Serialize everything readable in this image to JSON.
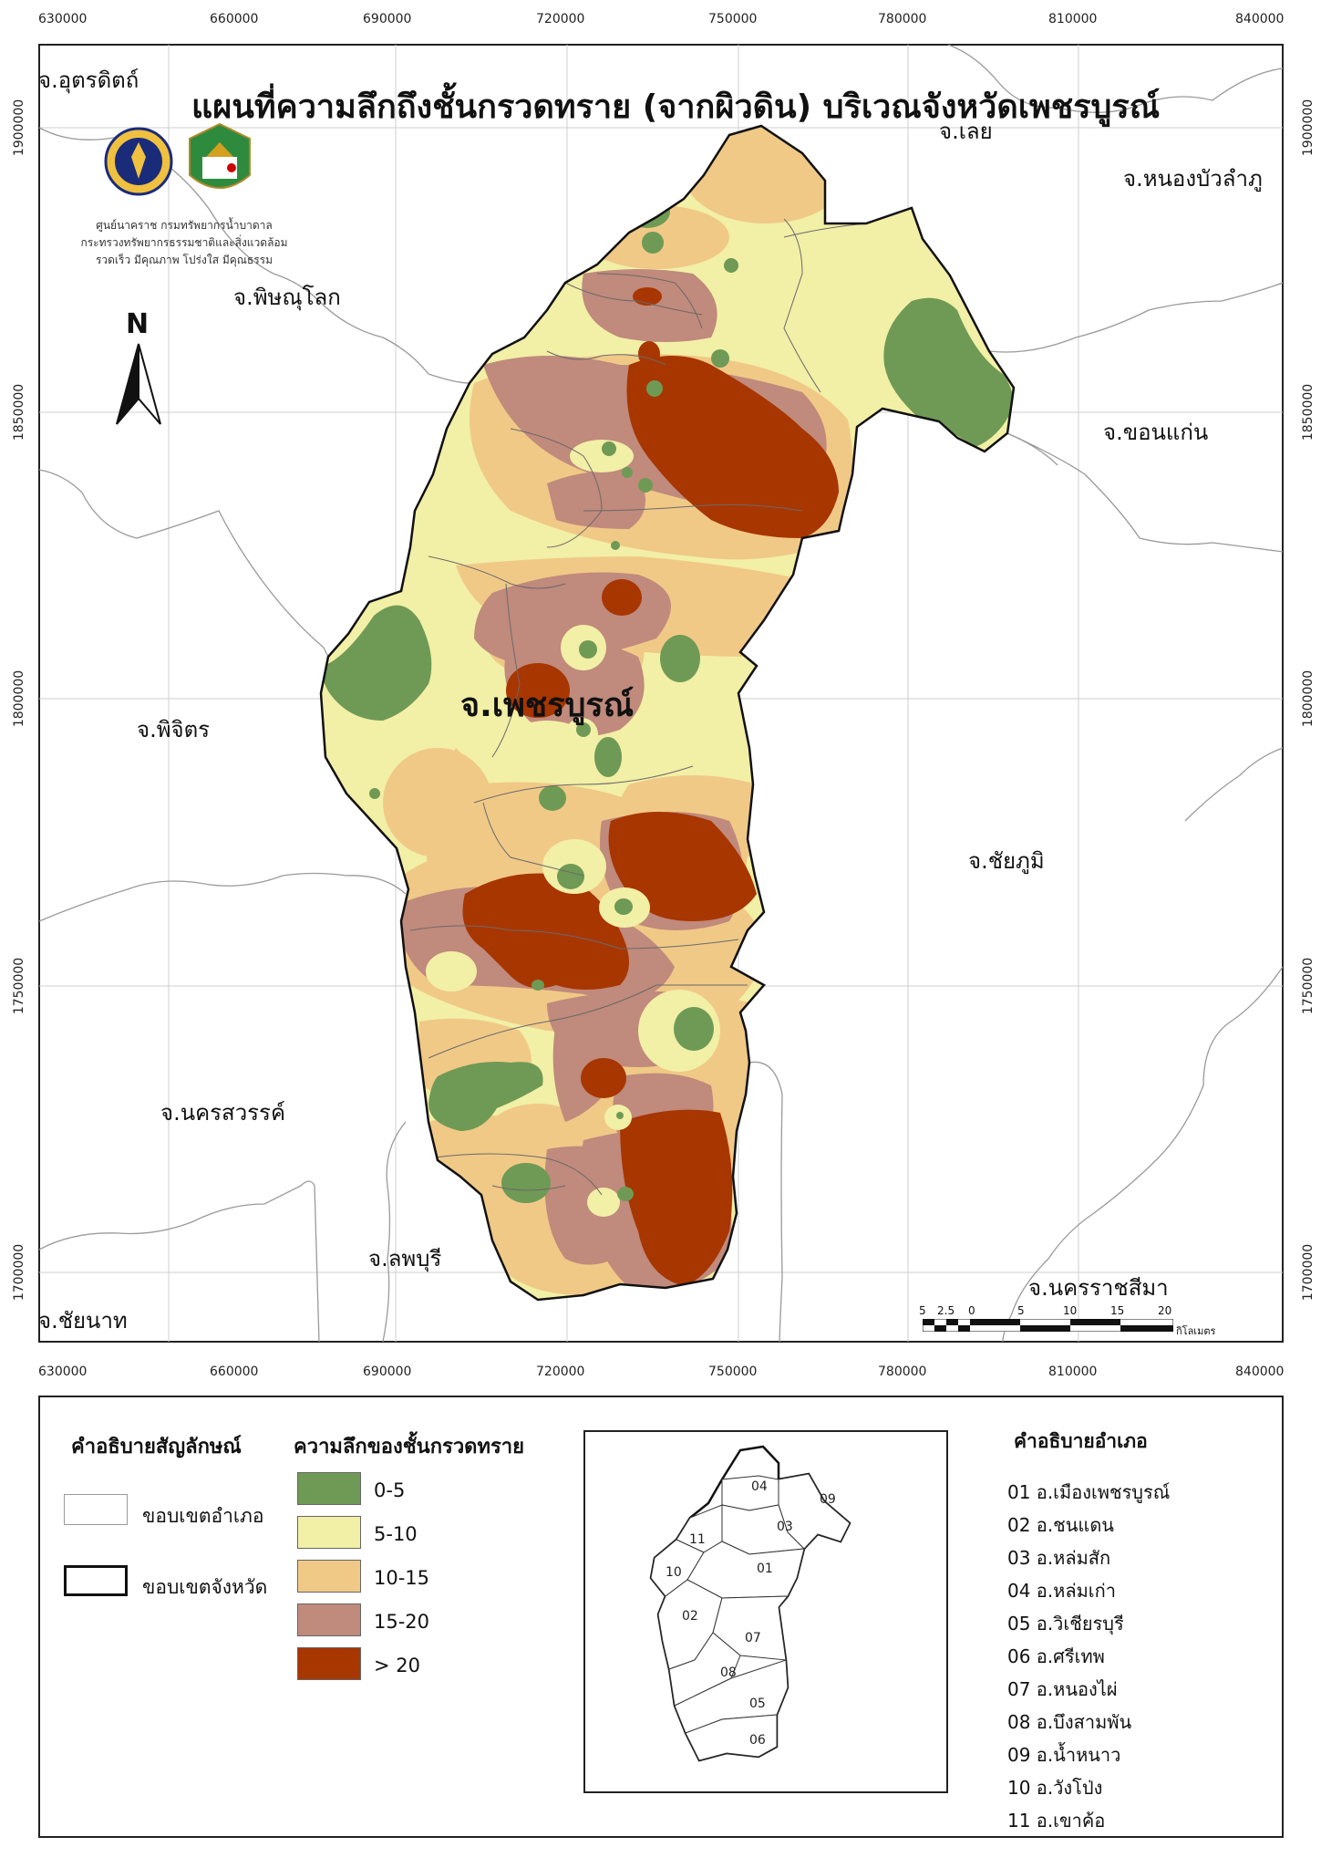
{
  "title": "แผนที่ความลึกถึงชั้นกรวดทราย (จากผิวดิน) บริเวณจังหวัดเพชรบูรณ์",
  "agency": {
    "line1": "ศูนย์นาคราช กรมทรัพยากรน้ำบาดาล",
    "line2": "กระทรวงทรัพยากรธรรมชาติและสิ่งแวดล้อม",
    "line3": "รวดเร็ว มีคุณภาพ โปร่งใส มีคุณธรรม"
  },
  "north_arrow": "N",
  "center_label": "จ.เพชรบูรณ์",
  "provinces": {
    "uttaradit": "จ.อุตรดิตถ์",
    "loei": "จ.เลย",
    "nongbualamphu": "จ.หนองบัวลำภู",
    "phitsanulok": "จ.พิษณุโลก",
    "khonkaen": "จ.ขอนแก่น",
    "phichit": "จ.พิจิตร",
    "chaiyaphum": "จ.ชัยภูมิ",
    "nakhonsawan": "จ.นครสวรรค์",
    "lopburi": "จ.ลพบุรี",
    "nakhonratchasima": "จ.นครราชสีมา",
    "chainat": "จ.ชัยนาท"
  },
  "x_ticks": [
    "630000",
    "660000",
    "690000",
    "720000",
    "750000",
    "780000",
    "810000",
    "840000"
  ],
  "y_ticks": [
    "1900000",
    "1850000",
    "1800000",
    "1750000",
    "1700000"
  ],
  "scale": {
    "labels": [
      "5",
      "2.5",
      "0",
      "5",
      "10",
      "15",
      "20"
    ],
    "unit": "กิโลเมตร"
  },
  "legend": {
    "symbol_title": "คำอธิบายสัญลักษณ์",
    "district_boundary": "ขอบเขตอำเภอ",
    "province_boundary": "ขอบเขตจังหวัด",
    "depth_title": "ความลึกของชั้นกรวดทราย",
    "classes": [
      {
        "label": "0-5",
        "color": "#6f9a55"
      },
      {
        "label": "5-10",
        "color": "#f2efa6"
      },
      {
        "label": "10-15",
        "color": "#f0c987"
      },
      {
        "label": "15-20",
        "color": "#c08a7c"
      },
      {
        "label": "> 20",
        "color": "#a83600"
      }
    ]
  },
  "districts": {
    "title": "คำอธิบายอำเภอ",
    "items": [
      "01 อ.เมืองเพชรบูรณ์",
      "02 อ.ชนแดน",
      "03 อ.หล่มสัก",
      "04 อ.หล่มเก่า",
      "05 อ.วิเชียรบุรี",
      "06 อ.ศรีเทพ",
      "07 อ.หนองไผ่",
      "08 อ.บึงสามพัน",
      "09 อ.น้ำหนาว",
      "10 อ.วังโป่ง",
      "11 อ.เขาค้อ"
    ]
  },
  "inset_numbers": [
    "04",
    "09",
    "03",
    "11",
    "10",
    "01",
    "02",
    "07",
    "08",
    "05",
    "06"
  ]
}
